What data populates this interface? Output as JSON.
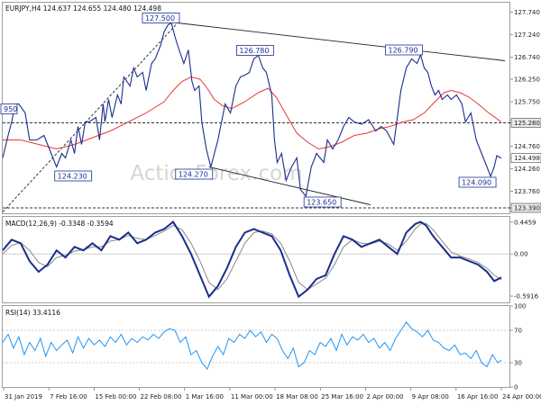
{
  "chart_data": {
    "type": "line",
    "symbol_header": "EURJPY,H4  124.637 124.655 124.480 124.498",
    "watermark": "ActionForex.com",
    "x_labels": [
      "31 Jan 2019",
      "7 Feb 16:00",
      "15 Feb 00:00",
      "22 Feb 08:00",
      "1 Mar 16:00",
      "11 Mar 00:00",
      "18 Mar 08:00",
      "25 Mar 16:00",
      "2 Apr 00:00",
      "9 Apr 08:00",
      "16 Apr 16:00",
      "24 Apr 00:00"
    ],
    "price_panel": {
      "y_ticks": [
        "127.740",
        "127.240",
        "126.740",
        "126.250",
        "125.750",
        "125.280",
        "124.760",
        "124.498",
        "124.260",
        "123.760",
        "123.390"
      ],
      "ylim": [
        123.27,
        127.95
      ],
      "highlighted_levels": [
        "125.280",
        "124.498",
        "123.390"
      ],
      "horizontal_levels": [
        125.28,
        123.39
      ],
      "series": [
        {
          "name": "",
          "color": "#1a2e8c",
          "x": [
            0,
            6,
            10,
            14,
            18,
            25,
            30,
            38,
            46,
            54,
            60,
            66,
            70,
            76,
            80,
            84,
            88,
            92,
            96,
            104,
            108,
            112,
            114,
            118,
            122,
            128,
            132,
            135,
            142,
            146,
            150,
            156,
            160,
            166,
            170,
            176,
            180,
            184,
            188,
            192,
            195,
            202,
            207,
            211,
            214,
            219,
            222,
            227,
            232,
            240,
            248,
            254,
            260,
            265,
            271,
            275,
            280,
            285,
            290,
            294,
            300,
            303,
            306,
            311,
            316,
            322,
            328,
            332,
            338,
            344,
            350,
            358,
            362,
            368,
            374,
            380,
            386,
            392,
            400,
            408,
            416,
            422,
            428,
            436,
            444,
            450,
            456,
            462,
            466,
            470,
            474,
            478,
            482,
            486,
            490,
            496,
            500,
            506,
            512,
            516,
            522,
            528,
            534,
            540,
            544,
            548,
            551,
            556
          ],
          "y": [
            124.5,
            125.0,
            125.3,
            125.7,
            125.7,
            125.5,
            124.9,
            124.9,
            125.0,
            124.6,
            124.3,
            124.6,
            124.5,
            124.9,
            124.6,
            125.2,
            124.8,
            125.3,
            125.3,
            125.4,
            124.9,
            125.7,
            125.3,
            125.8,
            125.4,
            125.9,
            125.7,
            126.3,
            126.1,
            126.5,
            126.3,
            126.4,
            126.0,
            126.6,
            126.7,
            127.0,
            127.3,
            127.45,
            127.5,
            127.2,
            127.0,
            126.6,
            126.9,
            126.2,
            126.0,
            126.1,
            125.3,
            124.7,
            124.3,
            124.9,
            125.7,
            125.5,
            126.1,
            126.3,
            126.35,
            126.4,
            126.7,
            126.78,
            126.5,
            126.4,
            125.9,
            124.9,
            124.4,
            124.6,
            124.0,
            124.3,
            124.5,
            123.8,
            123.65,
            124.3,
            124.6,
            124.4,
            124.9,
            124.7,
            124.9,
            125.2,
            125.4,
            125.3,
            125.25,
            125.35,
            125.1,
            125.2,
            125.1,
            124.8,
            126.0,
            126.5,
            126.7,
            126.6,
            126.79,
            126.5,
            126.4,
            126.1,
            125.9,
            126.0,
            125.8,
            125.9,
            125.8,
            125.9,
            125.7,
            125.3,
            125.5,
            124.9,
            124.6,
            124.3,
            124.09,
            124.3,
            124.55,
            124.498
          ]
        },
        {
          "name": "",
          "color": "#e53935",
          "x": [
            0,
            20,
            40,
            60,
            80,
            100,
            120,
            140,
            160,
            180,
            190,
            200,
            210,
            220,
            228,
            236,
            246,
            256,
            270,
            285,
            296,
            305,
            315,
            328,
            340,
            352,
            365,
            378,
            392,
            406,
            420,
            432,
            446,
            458,
            470,
            482,
            492,
            500,
            510,
            520,
            530,
            542,
            556
          ],
          "y": [
            124.9,
            124.9,
            124.8,
            124.7,
            124.8,
            124.95,
            125.1,
            125.3,
            125.5,
            125.75,
            126.0,
            126.2,
            126.3,
            126.25,
            126.05,
            125.8,
            125.65,
            125.6,
            125.75,
            125.95,
            126.05,
            125.85,
            125.5,
            125.05,
            124.85,
            124.7,
            124.75,
            124.85,
            125.0,
            125.05,
            125.15,
            125.2,
            125.3,
            125.35,
            125.5,
            125.75,
            125.95,
            126.0,
            125.95,
            125.85,
            125.7,
            125.5,
            125.3
          ]
        }
      ],
      "channel_lines": [
        {
          "name": "",
          "color": "#222222",
          "style": "solid",
          "x": [
            195,
            560
          ],
          "y": [
            127.5,
            126.66
          ]
        },
        {
          "name": "",
          "color": "#222222",
          "style": "solid",
          "x": [
            230,
            410
          ],
          "y": [
            124.3,
            123.46
          ]
        },
        {
          "name": "",
          "color": "#222222",
          "style": "dashed",
          "x": [
            0,
            195
          ],
          "y": [
            123.3,
            127.5
          ]
        }
      ],
      "annotations": [
        {
          "text": "127.500",
          "x": 195,
          "y": 127.5,
          "anchor": "left"
        },
        {
          "text": "126.780",
          "x": 300,
          "y": 126.78,
          "anchor": "left"
        },
        {
          "text": "126.790",
          "x": 466,
          "y": 126.79,
          "anchor": "left"
        },
        {
          "text": "124.230",
          "x": 60,
          "y": 124.23,
          "anchor": "right"
        },
        {
          "text": "124.270",
          "x": 232,
          "y": 124.27,
          "anchor": "left"
        },
        {
          "text": "123.650",
          "x": 338,
          "y": 123.65,
          "anchor": "right"
        },
        {
          "text": "124.090",
          "x": 548,
          "y": 124.09,
          "anchor": "left"
        },
        {
          "text": "950",
          "x": 0,
          "y": 125.6,
          "anchor": "right"
        }
      ]
    },
    "macd_panel": {
      "title": "MACD(12,26,9) -0.3348 -0.3594",
      "y_ticks": [
        "0.4459",
        "0.00",
        "-0.5916"
      ],
      "ylim": [
        -0.68,
        0.52
      ],
      "series": [
        {
          "name": "",
          "color": "#1a2e8c",
          "x": [
            0,
            10,
            20,
            30,
            40,
            50,
            60,
            70,
            80,
            90,
            100,
            110,
            120,
            130,
            140,
            150,
            160,
            170,
            180,
            190,
            200,
            210,
            220,
            230,
            240,
            250,
            260,
            270,
            280,
            290,
            300,
            310,
            320,
            330,
            340,
            350,
            360,
            370,
            380,
            390,
            400,
            410,
            420,
            430,
            440,
            450,
            460,
            466,
            472,
            480,
            490,
            500,
            510,
            520,
            530,
            540,
            548,
            556
          ],
          "y": [
            0.05,
            0.2,
            0.15,
            -0.1,
            -0.25,
            -0.15,
            0.05,
            -0.05,
            0.1,
            0.05,
            0.15,
            0.05,
            0.25,
            0.2,
            0.3,
            0.15,
            0.2,
            0.3,
            0.35,
            0.45,
            0.25,
            0.0,
            -0.3,
            -0.6,
            -0.45,
            -0.2,
            0.1,
            0.3,
            0.35,
            0.3,
            0.25,
            0.05,
            -0.3,
            -0.6,
            -0.5,
            -0.35,
            -0.3,
            0.0,
            0.25,
            0.2,
            0.1,
            0.15,
            0.2,
            0.1,
            0.0,
            0.3,
            0.42,
            0.45,
            0.4,
            0.25,
            0.1,
            -0.05,
            -0.05,
            -0.1,
            -0.15,
            -0.25,
            -0.38,
            -0.33
          ]
        },
        {
          "name": "",
          "color": "#8a8a8a",
          "x": [
            0,
            10,
            20,
            30,
            40,
            50,
            60,
            70,
            80,
            90,
            100,
            110,
            120,
            130,
            140,
            150,
            160,
            170,
            180,
            190,
            200,
            210,
            220,
            230,
            240,
            250,
            260,
            270,
            280,
            290,
            300,
            310,
            320,
            330,
            340,
            350,
            360,
            370,
            380,
            390,
            400,
            410,
            420,
            430,
            440,
            450,
            460,
            466,
            472,
            480,
            490,
            500,
            510,
            520,
            530,
            540,
            548,
            556
          ],
          "y": [
            0.0,
            0.12,
            0.16,
            0.05,
            -0.12,
            -0.18,
            -0.05,
            -0.02,
            0.04,
            0.06,
            0.1,
            0.1,
            0.18,
            0.2,
            0.26,
            0.22,
            0.2,
            0.26,
            0.32,
            0.4,
            0.34,
            0.15,
            -0.1,
            -0.4,
            -0.5,
            -0.35,
            -0.1,
            0.15,
            0.3,
            0.32,
            0.28,
            0.15,
            -0.1,
            -0.4,
            -0.5,
            -0.42,
            -0.34,
            -0.15,
            0.1,
            0.2,
            0.15,
            0.14,
            0.18,
            0.14,
            0.05,
            0.18,
            0.35,
            0.42,
            0.43,
            0.34,
            0.18,
            0.03,
            -0.03,
            -0.07,
            -0.12,
            -0.2,
            -0.3,
            -0.36
          ]
        }
      ]
    },
    "rsi_panel": {
      "title": "RSI(14) 33.4116",
      "y_ticks": [
        "100",
        "70",
        "30",
        "0"
      ],
      "ylim": [
        0,
        100
      ],
      "series": [
        {
          "name": "",
          "color": "#2196f3",
          "x": [
            0,
            6,
            12,
            18,
            24,
            30,
            36,
            42,
            48,
            54,
            60,
            66,
            72,
            78,
            84,
            90,
            96,
            102,
            108,
            114,
            120,
            126,
            132,
            138,
            144,
            150,
            156,
            162,
            168,
            174,
            180,
            186,
            192,
            198,
            204,
            210,
            216,
            222,
            228,
            234,
            240,
            246,
            252,
            258,
            264,
            270,
            276,
            282,
            288,
            294,
            300,
            306,
            312,
            318,
            324,
            330,
            336,
            342,
            348,
            354,
            360,
            366,
            372,
            378,
            384,
            390,
            396,
            402,
            408,
            414,
            420,
            426,
            432,
            438,
            444,
            450,
            456,
            462,
            468,
            474,
            480,
            486,
            492,
            498,
            504,
            510,
            516,
            522,
            528,
            534,
            540,
            546,
            552,
            556
          ],
          "y": [
            55,
            65,
            48,
            62,
            40,
            55,
            45,
            60,
            38,
            55,
            45,
            52,
            58,
            42,
            62,
            48,
            60,
            52,
            58,
            50,
            62,
            55,
            65,
            52,
            60,
            55,
            62,
            58,
            65,
            60,
            68,
            72,
            70,
            55,
            62,
            40,
            45,
            30,
            22,
            38,
            50,
            40,
            60,
            55,
            65,
            60,
            70,
            62,
            68,
            55,
            65,
            60,
            45,
            35,
            48,
            25,
            30,
            45,
            40,
            55,
            50,
            60,
            45,
            65,
            52,
            62,
            58,
            65,
            55,
            60,
            48,
            55,
            45,
            60,
            70,
            80,
            72,
            68,
            62,
            70,
            58,
            55,
            48,
            45,
            52,
            40,
            42,
            35,
            45,
            30,
            25,
            40,
            30,
            33
          ]
        }
      ]
    }
  }
}
